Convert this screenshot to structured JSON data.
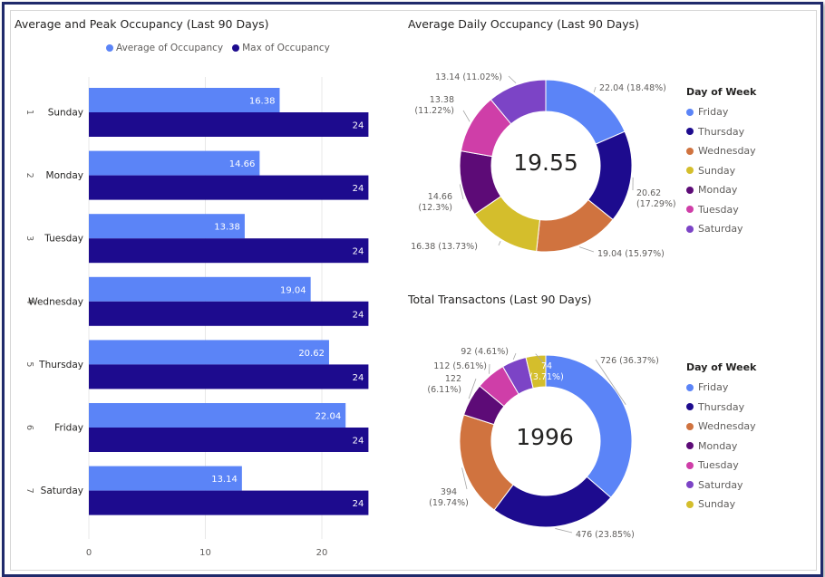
{
  "chart_data": [
    {
      "type": "bar",
      "orientation": "horizontal",
      "title": "Average and Peak Occupancy (Last 90 Days)",
      "categories": [
        "Sunday",
        "Monday",
        "Tuesday",
        "Wednesday",
        "Thursday",
        "Friday",
        "Saturday"
      ],
      "category_index": [
        "1",
        "2",
        "3",
        "4",
        "5",
        "6",
        "7"
      ],
      "series": [
        {
          "name": "Average of Occupancy",
          "color": "#5b84f7",
          "values": [
            16.38,
            14.66,
            13.38,
            19.04,
            20.62,
            22.04,
            13.14
          ],
          "labels": [
            "16.38",
            "14.66",
            "13.38",
            "19.04",
            "20.62",
            "22.04",
            "13.14"
          ]
        },
        {
          "name": "Max of Occupancy",
          "color": "#1d0b8e",
          "values": [
            24,
            24,
            24,
            24,
            24,
            24,
            24
          ],
          "labels": [
            "24",
            "24",
            "24",
            "24",
            "24",
            "24",
            "24"
          ]
        }
      ],
      "x_ticks": [
        "0",
        "10",
        "20"
      ],
      "xlim": [
        0,
        24
      ],
      "grid": true,
      "legend": "top"
    },
    {
      "type": "pie",
      "donut": true,
      "title": "Average Daily Occupancy (Last 90 Days)",
      "center_label": "19.55",
      "legend_title": "Day of Week",
      "slices": [
        {
          "label": "Friday",
          "value": 22.04,
          "data_label": "22.04 (18.48%)",
          "color": "#5b84f7"
        },
        {
          "label": "Thursday",
          "value": 20.62,
          "data_label": "20.62\n(17.29%)",
          "color": "#1d0b8e"
        },
        {
          "label": "Wednesday",
          "value": 19.04,
          "data_label": "19.04 (15.97%)",
          "color": "#d0733f"
        },
        {
          "label": "Sunday",
          "value": 16.38,
          "data_label": "16.38 (13.73%)",
          "color": "#d4be2c"
        },
        {
          "label": "Monday",
          "value": 14.66,
          "data_label": "14.66\n(12.3%)",
          "color": "#5d0b77"
        },
        {
          "label": "Tuesday",
          "value": 13.38,
          "data_label": "13.38\n(11.22%)",
          "color": "#cf3ea8"
        },
        {
          "label": "Saturday",
          "value": 13.14,
          "data_label": "13.14 (11.02%)",
          "color": "#7c44c6"
        }
      ]
    },
    {
      "type": "pie",
      "donut": true,
      "title": "Total Transactons (Last 90 Days)",
      "center_label": "1996",
      "legend_title": "Day of Week",
      "slices": [
        {
          "label": "Friday",
          "value": 726,
          "data_label": "726 (36.37%)",
          "color": "#5b84f7"
        },
        {
          "label": "Thursday",
          "value": 476,
          "data_label": "476 (23.85%)",
          "color": "#1d0b8e"
        },
        {
          "label": "Wednesday",
          "value": 394,
          "data_label": "394\n(19.74%)",
          "color": "#d0733f"
        },
        {
          "label": "Monday",
          "value": 122,
          "data_label": "122\n(6.11%)",
          "color": "#5d0b77"
        },
        {
          "label": "Tuesday",
          "value": 112,
          "data_label": "112 (5.61%)",
          "color": "#cf3ea8"
        },
        {
          "label": "Saturday",
          "value": 92,
          "data_label": "92 (4.61%)",
          "color": "#7c44c6"
        },
        {
          "label": "Sunday",
          "value": 74,
          "data_label": "74\n(3.71%)",
          "color": "#d4be2c"
        }
      ]
    }
  ]
}
